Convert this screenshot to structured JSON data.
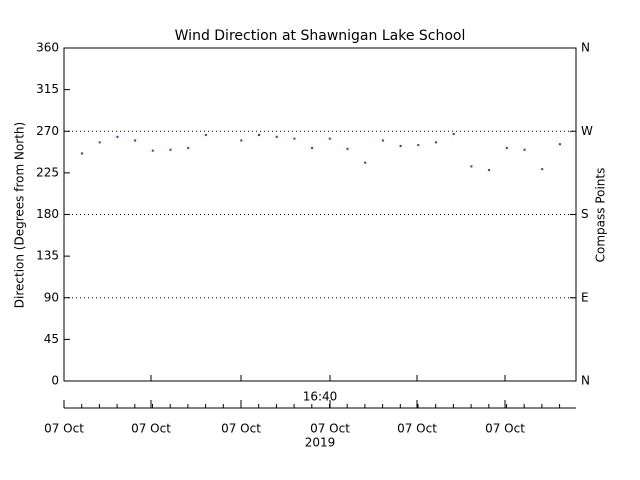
{
  "chart_data": {
    "type": "scatter",
    "title": "Wind Direction at Shawnigan Lake School",
    "y_label": "Direction (Degrees from North)",
    "y2_label": "Compass Points",
    "x_time_label": "16:40",
    "x_date_labels": [
      "07 Oct",
      "07 Oct",
      "07 Oct",
      "07 Oct",
      "07 Oct",
      "07 Oct"
    ],
    "x_year_label": "2019",
    "color": "#9900cc",
    "values": [
      246,
      258,
      264,
      260,
      249,
      250,
      252,
      266,
      null,
      260,
      266,
      264,
      262,
      252,
      262,
      251,
      236,
      260,
      254,
      255,
      258,
      267,
      232,
      228,
      252,
      250,
      229,
      256
    ],
    "ylim": [
      0,
      360
    ],
    "yticks": [
      0,
      45,
      90,
      135,
      180,
      225,
      270,
      315,
      360
    ],
    "y2lim": [
      0,
      360
    ],
    "y2ticks": [
      {
        "value": 0,
        "label": "N"
      },
      {
        "value": 90,
        "label": "E"
      },
      {
        "value": 180,
        "label": "S"
      },
      {
        "value": 270,
        "label": "W"
      },
      {
        "value": 360,
        "label": "N"
      }
    ],
    "grid_lines": [
      90,
      180,
      270
    ]
  }
}
